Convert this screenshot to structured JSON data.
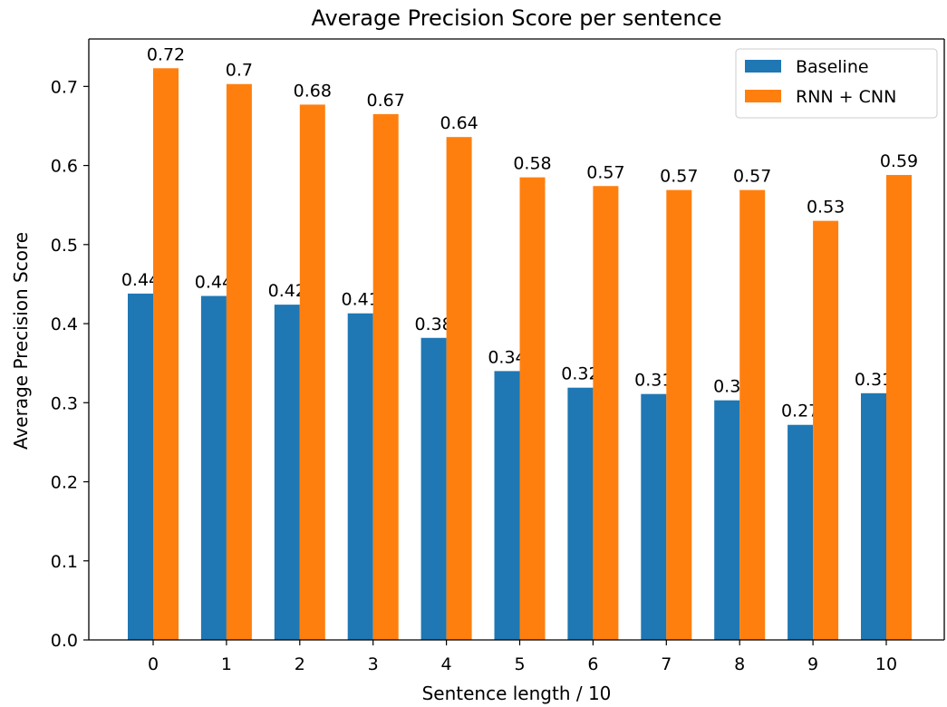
{
  "chart_data": {
    "type": "bar",
    "title": "Average Precision Score per sentence",
    "xlabel": "Sentence length / 10",
    "ylabel": "Average Precision Score",
    "categories": [
      "0",
      "1",
      "2",
      "3",
      "4",
      "5",
      "6",
      "7",
      "8",
      "9",
      "10"
    ],
    "series": [
      {
        "name": "Baseline",
        "color": "#1f77b4",
        "values": [
          0.438,
          0.435,
          0.424,
          0.413,
          0.382,
          0.34,
          0.319,
          0.311,
          0.303,
          0.272,
          0.312
        ],
        "labels": [
          "0.44",
          "0.44",
          "0.42",
          "0.41",
          "0.38",
          "0.34",
          "0.32",
          "0.31",
          "0.3",
          "0.27",
          "0.31"
        ]
      },
      {
        "name": "RNN + CNN",
        "color": "#ff7f0e",
        "values": [
          0.723,
          0.703,
          0.677,
          0.665,
          0.636,
          0.585,
          0.574,
          0.569,
          0.569,
          0.53,
          0.588
        ],
        "labels": [
          "0.72",
          "0.7",
          "0.68",
          "0.67",
          "0.64",
          "0.58",
          "0.57",
          "0.57",
          "0.57",
          "0.53",
          "0.59"
        ]
      }
    ],
    "ylim": [
      0,
      0.76
    ],
    "yticks": [
      0.0,
      0.1,
      0.2,
      0.3,
      0.4,
      0.5,
      0.6,
      0.7
    ],
    "ytick_labels": [
      "0.0",
      "0.1",
      "0.2",
      "0.3",
      "0.4",
      "0.5",
      "0.6",
      "0.7"
    ],
    "grid": false,
    "legend_position": "top-right"
  }
}
